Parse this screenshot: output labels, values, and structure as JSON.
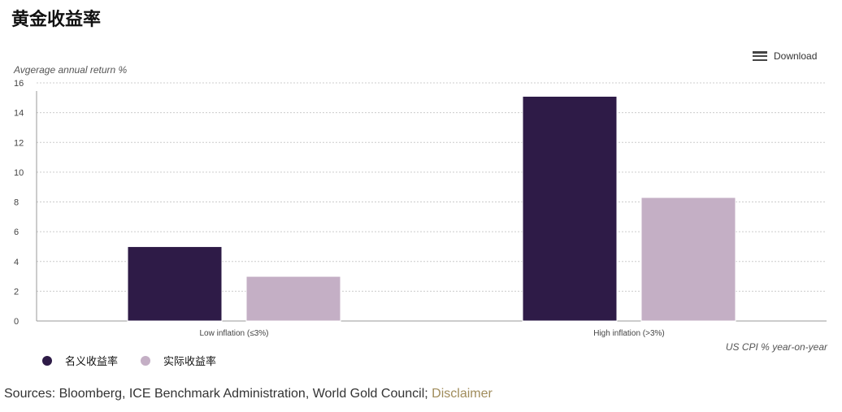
{
  "title": "黄金收益率",
  "download_label": "Download",
  "colors": {
    "nominal": "#2e1b47",
    "real": "#c4afc5",
    "disclaimer": "#a08c5b"
  },
  "chart_data": {
    "type": "bar",
    "categories": [
      "Low inflation (≤3%)",
      "High inflation (>3%)"
    ],
    "series": [
      {
        "name": "名义收益率",
        "values": [
          5.0,
          15.1
        ]
      },
      {
        "name": "实际收益率",
        "values": [
          3.0,
          8.3
        ]
      }
    ],
    "ylabel": "Avgerage annual return %",
    "xlabel": "US CPI % year-on-year",
    "ylim": [
      0,
      16
    ],
    "yticks": [
      0,
      2,
      4,
      6,
      8,
      10,
      12,
      14,
      16
    ],
    "grid": true,
    "legend_position": "bottom-left"
  },
  "sources": {
    "text": "Sources: Bloomberg, ICE Benchmark Administration, World Gold Council;",
    "link": "Disclaimer"
  }
}
